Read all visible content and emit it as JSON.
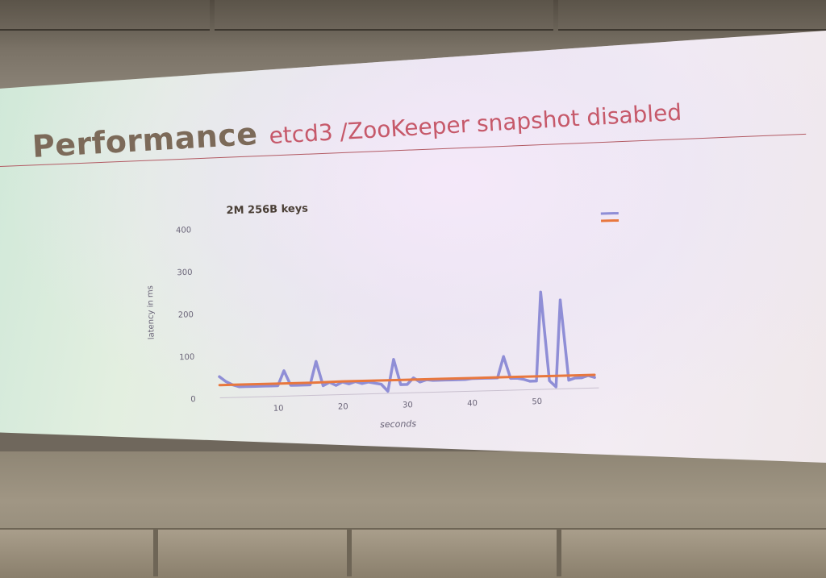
{
  "slide": {
    "title": "Performance",
    "subtitle": "etcd3 /ZooKeeper snapshot disabled"
  },
  "colors": {
    "series_a": "#8f8ed6",
    "series_b": "#e8773e",
    "title": "#7c6a59",
    "subtitle": "#c6596a"
  },
  "chart_data": {
    "type": "line",
    "title": "2M 256B keys",
    "xlabel": "seconds",
    "ylabel": "latency in ms",
    "xlim": [
      1,
      59
    ],
    "ylim": [
      0,
      400
    ],
    "xticks": [
      10,
      20,
      30,
      40,
      50
    ],
    "yticks": [
      0,
      100,
      200,
      300,
      400
    ],
    "legend": "top-right",
    "grid": false,
    "series": [
      {
        "color": "#8f8ed6",
        "x": [
          1,
          2,
          3,
          4,
          5,
          6,
          7,
          8,
          9,
          10,
          11,
          12,
          13,
          14,
          15,
          16,
          17,
          18,
          19,
          20,
          21,
          22,
          23,
          24,
          25,
          26,
          27,
          28,
          29,
          30,
          31,
          32,
          33,
          34,
          35,
          36,
          37,
          38,
          39,
          40,
          41,
          42,
          43,
          44,
          45,
          46,
          47,
          48,
          49,
          50,
          51,
          52,
          53,
          54,
          55,
          56,
          57,
          58,
          59
        ],
        "values": [
          50,
          38,
          30,
          25,
          25,
          25,
          25,
          25,
          25,
          25,
          60,
          25,
          25,
          25,
          25,
          80,
          22,
          30,
          22,
          30,
          25,
          30,
          25,
          28,
          25,
          22,
          5,
          80,
          20,
          20,
          35,
          25,
          30,
          28,
          28,
          28,
          28,
          28,
          28,
          30,
          30,
          30,
          30,
          30,
          80,
          28,
          28,
          25,
          20,
          20,
          230,
          20,
          5,
          210,
          20,
          25,
          25,
          30,
          25
        ]
      },
      {
        "color": "#e8773e",
        "x": [
          1,
          5,
          10,
          15,
          20,
          25,
          30,
          35,
          40,
          45,
          50,
          55,
          59
        ],
        "values": [
          30,
          30,
          30,
          30,
          31,
          31,
          31,
          31,
          31,
          31,
          31,
          31,
          31
        ]
      }
    ]
  }
}
